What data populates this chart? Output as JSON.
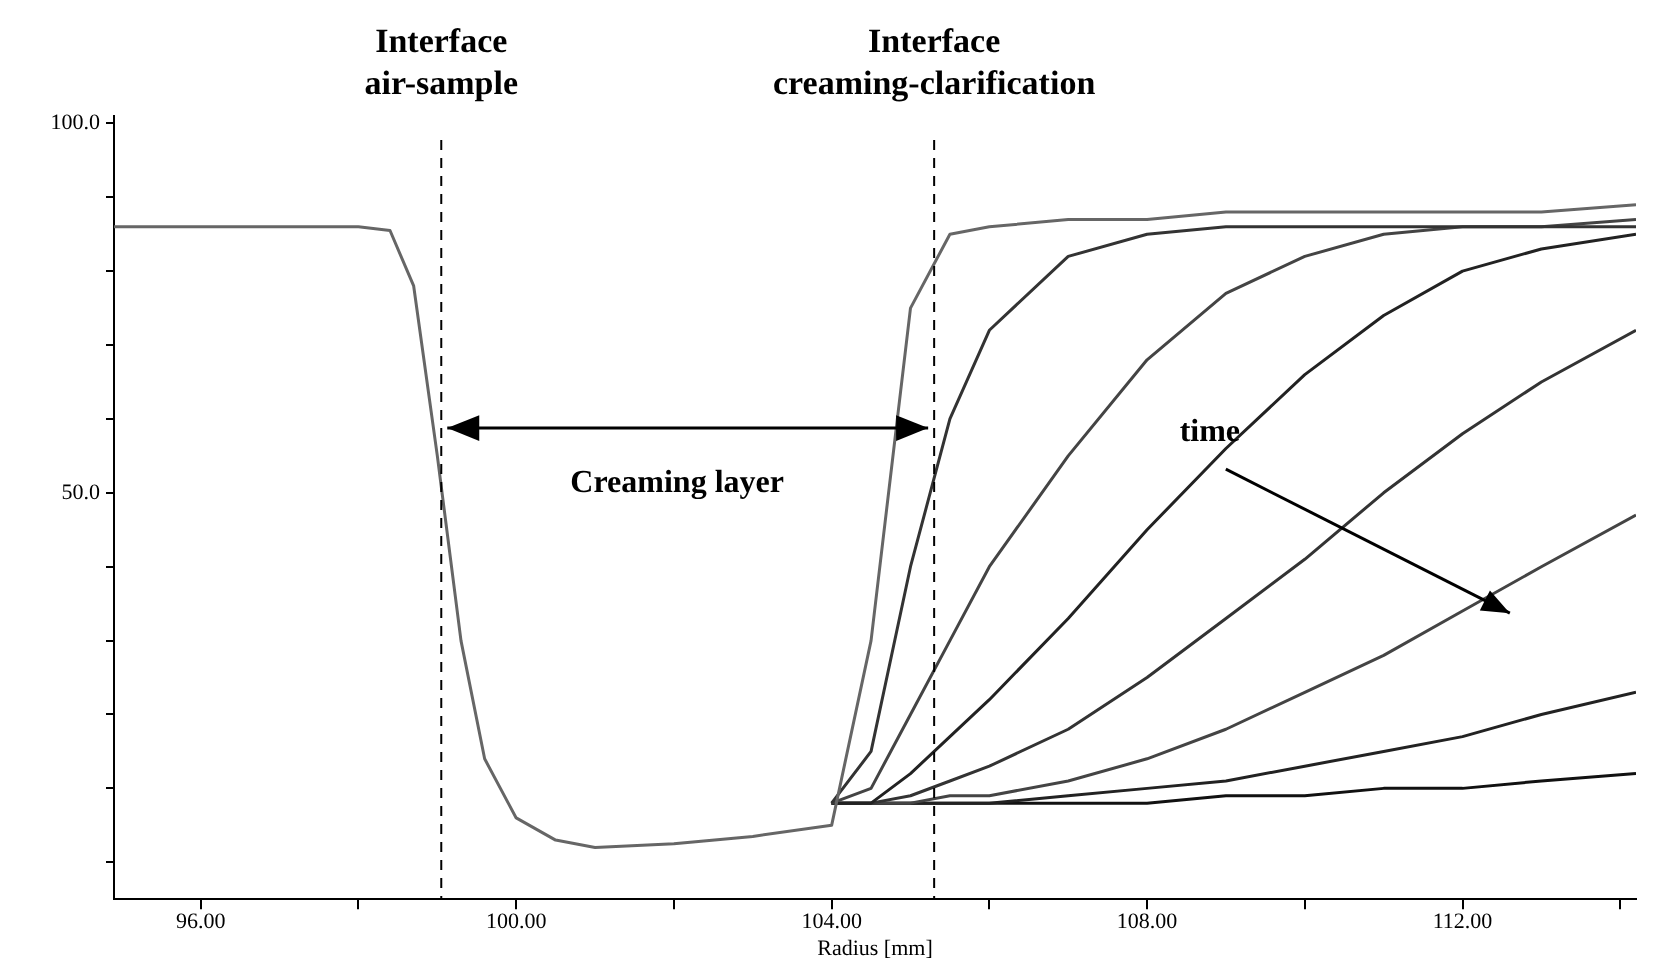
{
  "chart_data": {
    "type": "line",
    "xlabel": "Radius [mm]",
    "xlim": [
      94.9,
      114.2
    ],
    "ylim": [
      -5,
      101
    ],
    "xticks": [
      {
        "value": 96,
        "label": "96.00"
      },
      {
        "value": 98,
        "label": null
      },
      {
        "value": 100,
        "label": "100.00"
      },
      {
        "value": 102,
        "label": null
      },
      {
        "value": 104,
        "label": "104.00"
      },
      {
        "value": 106,
        "label": null
      },
      {
        "value": 108,
        "label": "108.00"
      },
      {
        "value": 110,
        "label": null
      },
      {
        "value": 112,
        "label": "112.00"
      },
      {
        "value": 114,
        "label": null
      }
    ],
    "yticks": [
      {
        "value": 0,
        "label": null
      },
      {
        "value": 10,
        "label": null
      },
      {
        "value": 20,
        "label": null
      },
      {
        "value": 30,
        "label": null
      },
      {
        "value": 40,
        "label": null
      },
      {
        "value": 50,
        "label": "50.0"
      },
      {
        "value": 60,
        "label": null
      },
      {
        "value": 70,
        "label": null
      },
      {
        "value": 80,
        "label": null
      },
      {
        "value": 90,
        "label": null
      },
      {
        "value": 100,
        "label": "100.0"
      }
    ],
    "grid": false,
    "legend": false,
    "marker": "none",
    "line_style": "solid",
    "series": [
      {
        "color": "#666666",
        "x": [
          94.9,
          96,
          97,
          98,
          98.4,
          98.7,
          99,
          99.3,
          99.6,
          100,
          100.5,
          101,
          102,
          103,
          104,
          104.5,
          105,
          105.5,
          106,
          107,
          108,
          109,
          110,
          111,
          112,
          113,
          114.2
        ],
        "values": [
          86,
          86,
          86,
          86,
          85.5,
          78,
          55,
          30,
          14,
          6,
          3,
          2,
          2.5,
          3.5,
          5,
          30,
          75,
          85,
          86,
          87,
          87,
          88,
          88,
          88,
          88,
          88,
          89
        ]
      },
      {
        "color": "#333333",
        "x": [
          104,
          104.5,
          105,
          105.5,
          106,
          107,
          108,
          109,
          110,
          111,
          112,
          113,
          114.2
        ],
        "values": [
          8,
          15,
          40,
          60,
          72,
          82,
          85,
          86,
          86,
          86,
          86,
          86,
          86
        ]
      },
      {
        "color": "#444444",
        "x": [
          104,
          104.5,
          105,
          105.5,
          106,
          107,
          108,
          109,
          110,
          111,
          112,
          113,
          114.2
        ],
        "values": [
          8,
          10,
          20,
          30,
          40,
          55,
          68,
          77,
          82,
          85,
          86,
          86,
          87
        ]
      },
      {
        "color": "#222222",
        "x": [
          104,
          104.5,
          105,
          105.5,
          106,
          107,
          108,
          109,
          110,
          111,
          112,
          113,
          114.2
        ],
        "values": [
          8,
          8,
          12,
          17,
          22,
          33,
          45,
          56,
          66,
          74,
          80,
          83,
          85
        ]
      },
      {
        "color": "#333333",
        "x": [
          104,
          104.5,
          105,
          105.5,
          106,
          107,
          108,
          109,
          110,
          111,
          112,
          113,
          114.2
        ],
        "values": [
          8,
          8,
          9,
          11,
          13,
          18,
          25,
          33,
          41,
          50,
          58,
          65,
          72
        ]
      },
      {
        "color": "#444444",
        "x": [
          104,
          104.5,
          105,
          105.5,
          106,
          107,
          108,
          109,
          110,
          111,
          112,
          113,
          114.2
        ],
        "values": [
          8,
          8,
          8,
          9,
          9,
          11,
          14,
          18,
          23,
          28,
          34,
          40,
          47
        ]
      },
      {
        "color": "#222222",
        "x": [
          104,
          104.5,
          105,
          105.5,
          106,
          107,
          108,
          109,
          110,
          111,
          112,
          113,
          114.2
        ],
        "values": [
          8,
          8,
          8,
          8,
          8,
          9,
          10,
          11,
          13,
          15,
          17,
          20,
          23
        ]
      },
      {
        "color": "#111111",
        "x": [
          104,
          104.5,
          105,
          105.5,
          106,
          107,
          108,
          109,
          110,
          111,
          112,
          113,
          114.2
        ],
        "values": [
          8,
          8,
          8,
          8,
          8,
          8,
          8,
          9,
          9,
          10,
          10,
          11,
          12
        ]
      }
    ],
    "ref_lines": [
      {
        "axis": "x",
        "value": 99.05,
        "label": "Interface air-sample",
        "line_style": "dashed",
        "color": "#000000"
      },
      {
        "axis": "x",
        "value": 105.3,
        "label": "Interface creaming-clarification",
        "line_style": "dashed",
        "color": "#000000"
      }
    ],
    "annotations": [
      "Creaming layer",
      "time"
    ]
  }
}
